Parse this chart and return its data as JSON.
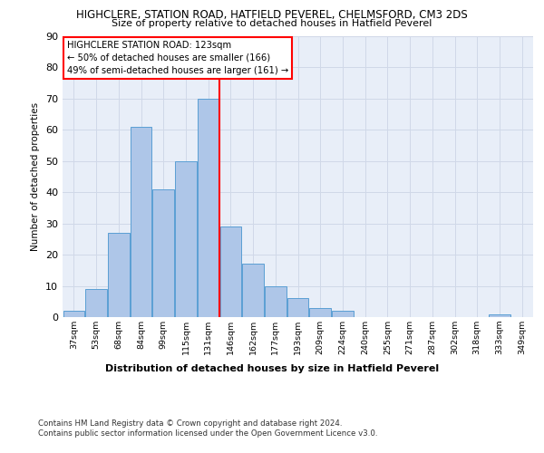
{
  "title1": "HIGHCLERE, STATION ROAD, HATFIELD PEVEREL, CHELMSFORD, CM3 2DS",
  "title2": "Size of property relative to detached houses in Hatfield Peverel",
  "xlabel": "Distribution of detached houses by size in Hatfield Peverel",
  "ylabel": "Number of detached properties",
  "categories": [
    "37sqm",
    "53sqm",
    "68sqm",
    "84sqm",
    "99sqm",
    "115sqm",
    "131sqm",
    "146sqm",
    "162sqm",
    "177sqm",
    "193sqm",
    "209sqm",
    "224sqm",
    "240sqm",
    "255sqm",
    "271sqm",
    "287sqm",
    "302sqm",
    "318sqm",
    "333sqm",
    "349sqm"
  ],
  "values": [
    2,
    9,
    27,
    61,
    41,
    50,
    70,
    29,
    17,
    10,
    6,
    3,
    2,
    0,
    0,
    0,
    0,
    0,
    0,
    1,
    0
  ],
  "bar_color": "#aec6e8",
  "bar_edge_color": "#5a9fd4",
  "vline_color": "red",
  "vline_x": 6.5,
  "annotation_text": "HIGHCLERE STATION ROAD: 123sqm\n← 50% of detached houses are smaller (166)\n49% of semi-detached houses are larger (161) →",
  "annotation_box_color": "white",
  "annotation_box_edge_color": "red",
  "ylim": [
    0,
    90
  ],
  "yticks": [
    0,
    10,
    20,
    30,
    40,
    50,
    60,
    70,
    80,
    90
  ],
  "grid_color": "#d0d8e8",
  "background_color": "#e8eef8",
  "footer1": "Contains HM Land Registry data © Crown copyright and database right 2024.",
  "footer2": "Contains public sector information licensed under the Open Government Licence v3.0."
}
